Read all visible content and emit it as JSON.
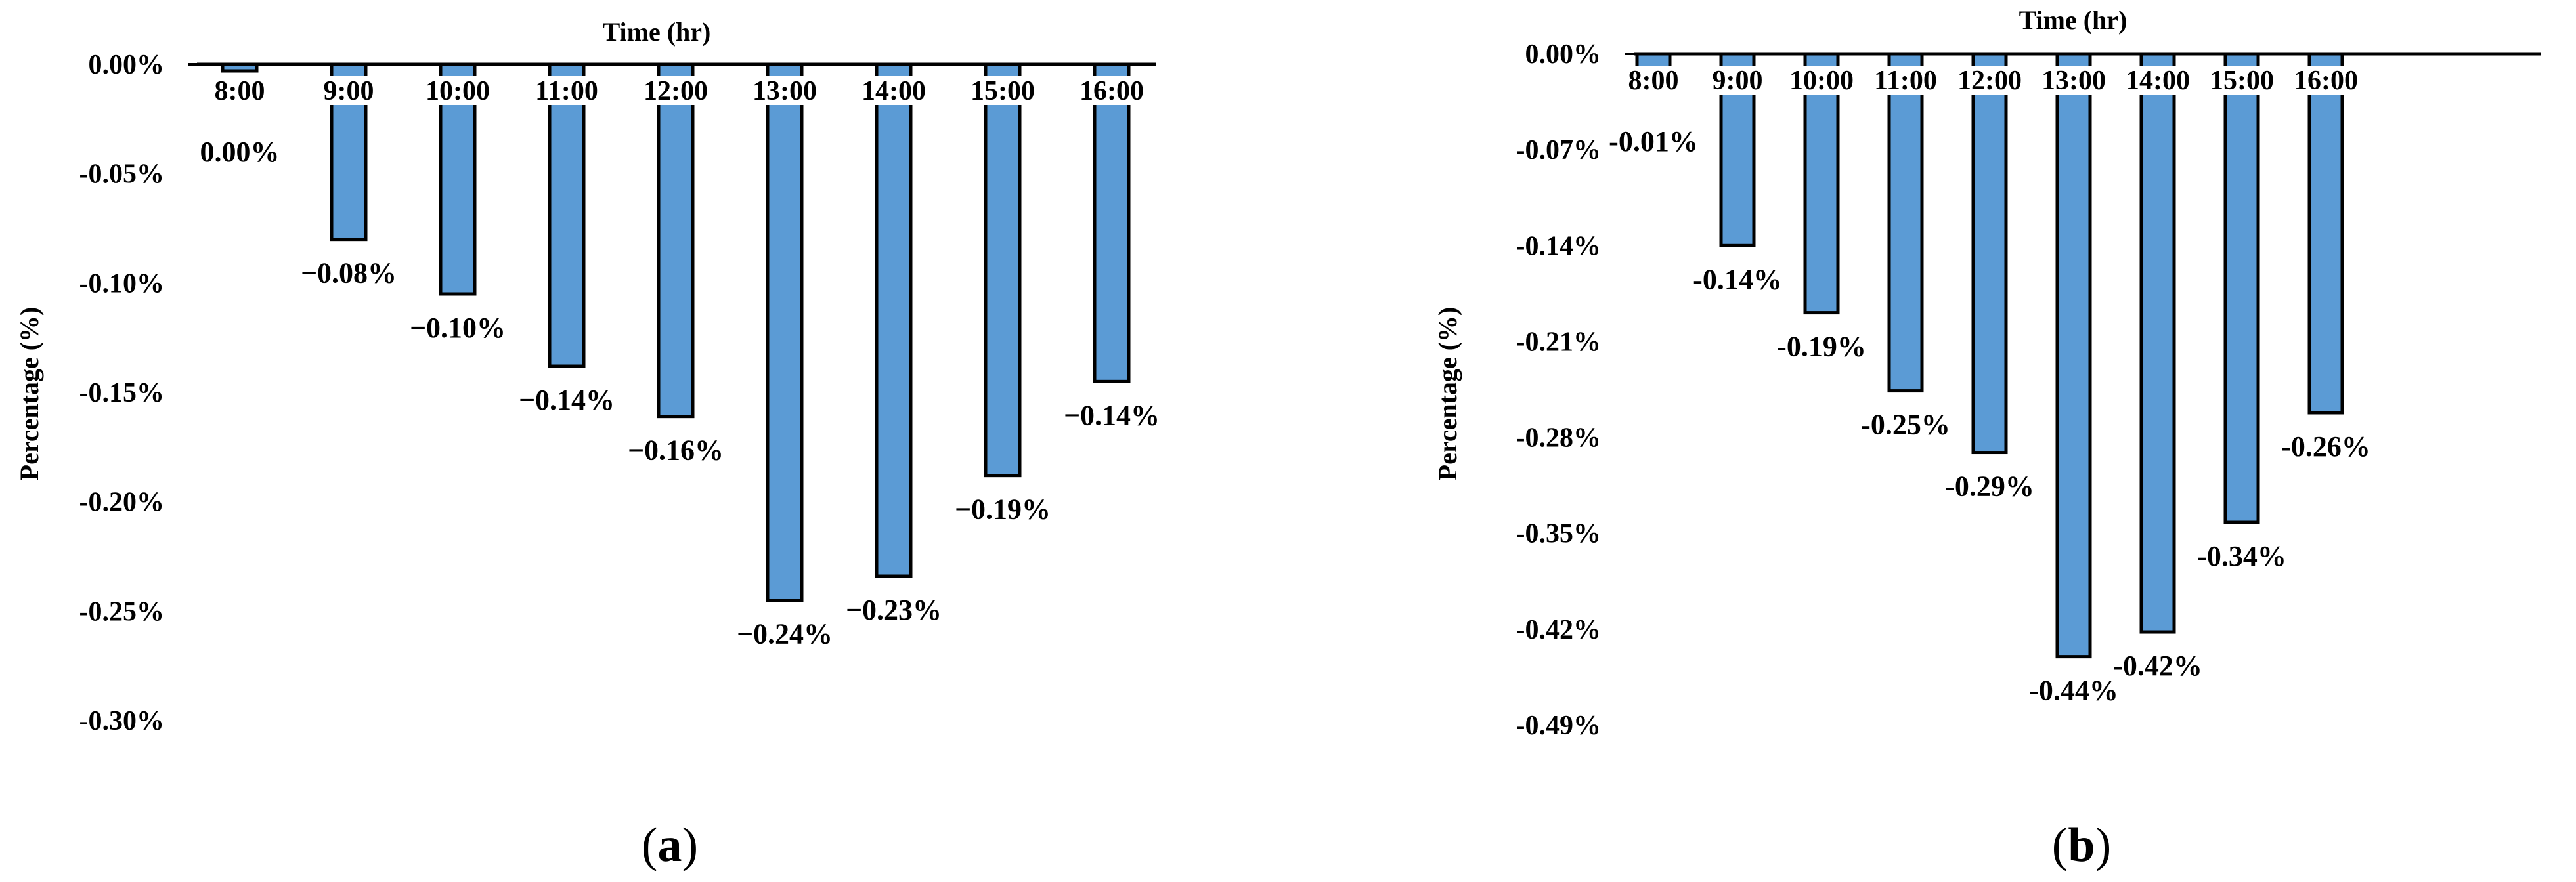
{
  "chart_data": [
    {
      "type": "bar",
      "panel_label": "a",
      "xlabel": "Time (hr)",
      "ylabel": "Percentage (%)",
      "categories": [
        "8:00",
        "9:00",
        "10:00",
        "11:00",
        "12:00",
        "13:00",
        "14:00",
        "15:00",
        "16:00"
      ],
      "values": [
        -0.003,
        -0.08,
        -0.105,
        -0.138,
        -0.161,
        -0.245,
        -0.234,
        -0.188,
        -0.145
      ],
      "data_labels": [
        "0.00%",
        "−0.08%",
        "−0.10%",
        "−0.14%",
        "−0.16%",
        "−0.24%",
        "−0.23%",
        "−0.19%",
        "−0.14%"
      ],
      "yticks": [
        0.0,
        -0.05,
        -0.1,
        -0.15,
        -0.2,
        -0.25,
        -0.3
      ],
      "ytick_labels": [
        "0.00%",
        "-0.05%",
        "-0.10%",
        "-0.15%",
        "-0.20%",
        "-0.25%",
        "-0.30%"
      ],
      "ylim": [
        -0.3,
        0.0
      ],
      "bar_color": "#5b9bd5",
      "grid": false,
      "legend": "none"
    },
    {
      "type": "bar",
      "panel_label": "b",
      "xlabel": "Time (hr)",
      "ylabel": "Percentage (%)",
      "categories": [
        "8:00",
        "9:00",
        "10:00",
        "11:00",
        "12:00",
        "13:00",
        "14:00",
        "15:00",
        "16:00"
      ],
      "values": [
        -0.01,
        -0.14,
        -0.189,
        -0.246,
        -0.291,
        -0.44,
        -0.422,
        -0.342,
        -0.262
      ],
      "data_labels": [
        "-0.01%",
        "-0.14%",
        "-0.19%",
        "-0.25%",
        "-0.29%",
        "-0.44%",
        "-0.42%",
        "-0.34%",
        "-0.26%"
      ],
      "yticks": [
        0.0,
        -0.07,
        -0.14,
        -0.21,
        -0.28,
        -0.35,
        -0.42,
        -0.49
      ],
      "ytick_labels": [
        "0.00%",
        "-0.07%",
        "-0.14%",
        "-0.21%",
        "-0.28%",
        "-0.35%",
        "-0.42%",
        "-0.49%"
      ],
      "ylim": [
        -0.49,
        0.0
      ],
      "bar_color": "#5b9bd5",
      "grid": false,
      "legend": "none"
    }
  ]
}
